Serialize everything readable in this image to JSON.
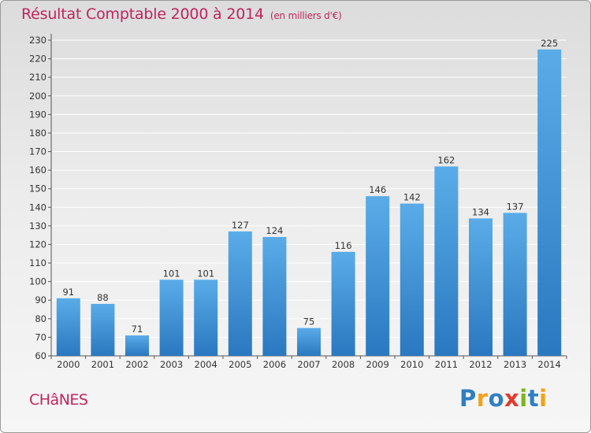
{
  "title": "Résultat Comptable 2000 à 2014",
  "unit": "(en milliers d'€)",
  "commune": "CHâNES",
  "logo": {
    "letters": [
      "P",
      "r",
      "o",
      "x",
      "i",
      "t",
      "i"
    ],
    "colors": [
      "#2f7fc1",
      "#f3a11a",
      "#2f7fc1",
      "#e23a2c",
      "#7ab51d",
      "#2f7fc1",
      "#f3a11a"
    ]
  },
  "colors": {
    "bar": "#4a9de0",
    "bar_dark": "#2c7cc4",
    "title": "#c0245c",
    "grid": "#ffffff"
  },
  "chart_data": {
    "type": "bar",
    "title": "Résultat Comptable 2000 à 2014",
    "xlabel": "",
    "ylabel": "",
    "categories": [
      "2000",
      "2001",
      "2002",
      "2003",
      "2004",
      "2005",
      "2006",
      "2007",
      "2008",
      "2009",
      "2010",
      "2011",
      "2012",
      "2013",
      "2014"
    ],
    "values": [
      91,
      88,
      71,
      101,
      101,
      127,
      124,
      75,
      116,
      146,
      142,
      162,
      134,
      137,
      225
    ],
    "ylim": [
      60,
      230
    ],
    "yticks": [
      60,
      70,
      80,
      90,
      100,
      110,
      120,
      130,
      140,
      150,
      160,
      170,
      180,
      190,
      200,
      210,
      220,
      230
    ],
    "grid": true
  }
}
